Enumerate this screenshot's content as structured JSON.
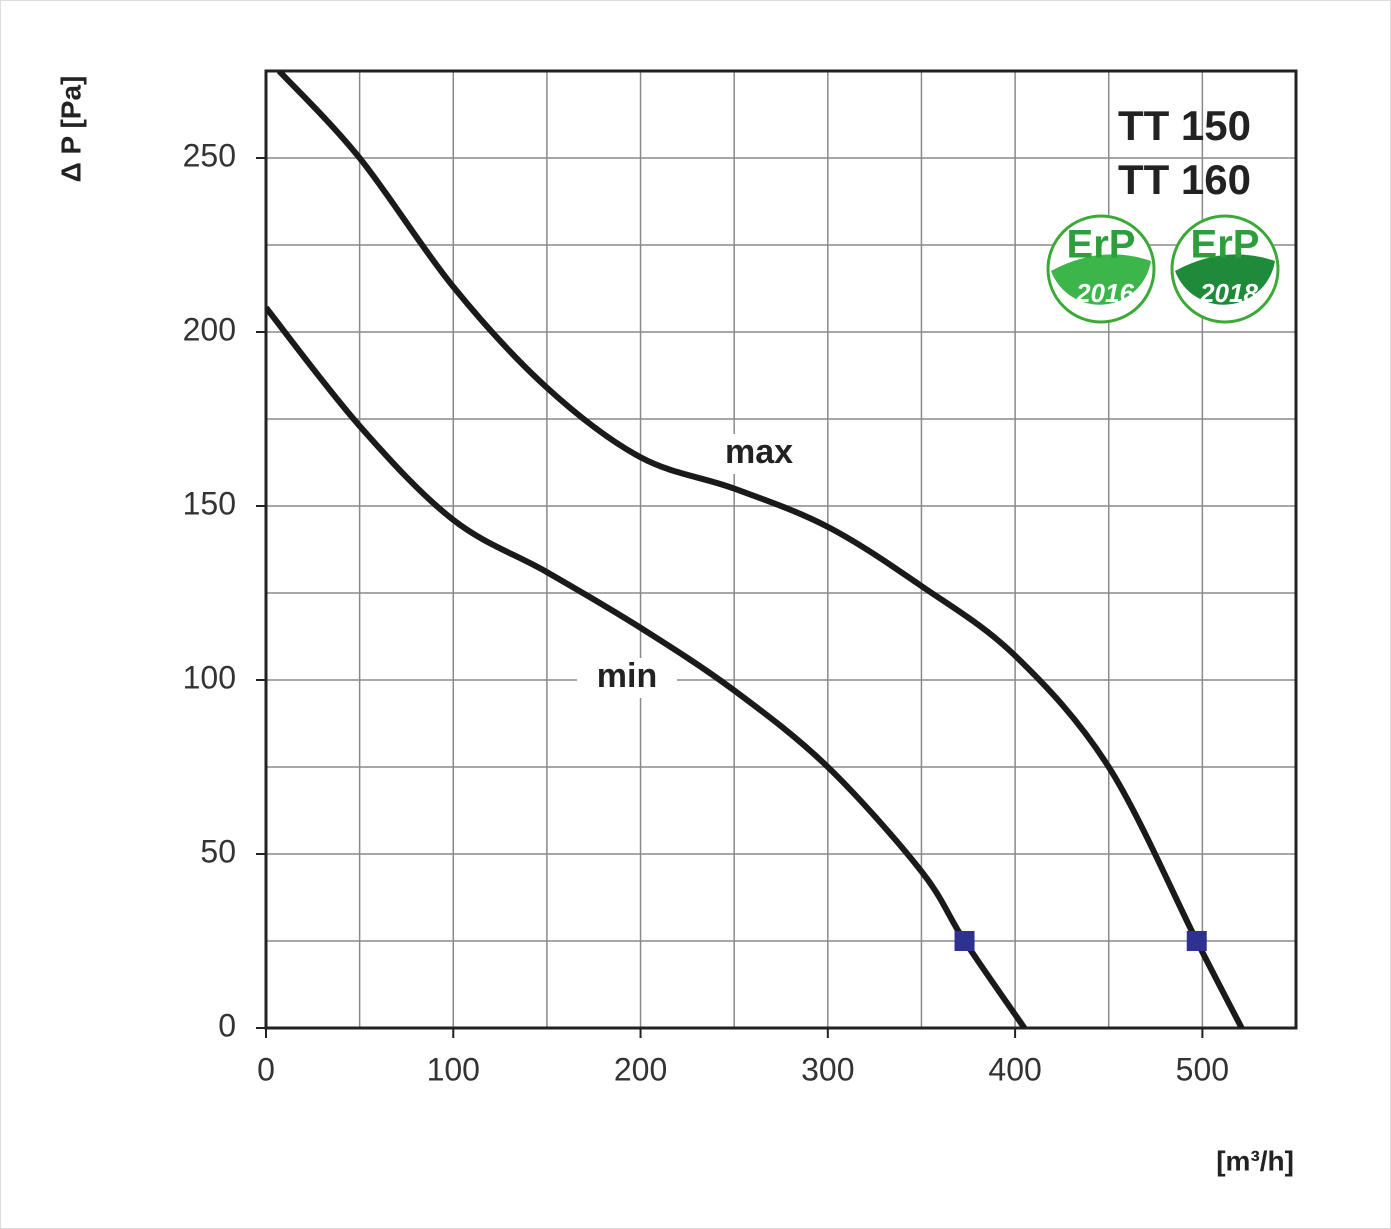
{
  "chart_data": {
    "type": "line",
    "title_lines": [
      "TT 150",
      "TT 160"
    ],
    "x_label": "[m³/h]",
    "y_label": "Δ P [Pa]",
    "xlim": [
      0,
      550
    ],
    "ylim": [
      0,
      275
    ],
    "xticks": [
      0,
      100,
      200,
      300,
      400,
      500
    ],
    "yticks": [
      0,
      50,
      100,
      150,
      200,
      250
    ],
    "grid": true,
    "series": [
      {
        "name": "max",
        "color": "#1a1a1a",
        "x": [
          7,
          50,
          100,
          150,
          200,
          250,
          300,
          350,
          400,
          450,
          497,
          521
        ],
        "values": [
          275,
          250,
          213,
          184,
          164,
          155,
          144,
          127,
          107,
          75,
          25,
          0
        ]
      },
      {
        "name": "min",
        "color": "#1a1a1a",
        "x": [
          0,
          50,
          100,
          150,
          200,
          250,
          300,
          350,
          373,
          405
        ],
        "values": [
          207,
          173,
          146,
          131,
          115,
          97,
          75,
          45,
          25,
          0
        ]
      }
    ],
    "operating_points": {
      "color": "#2e3192",
      "x": [
        373,
        497
      ],
      "values": [
        25,
        25
      ]
    },
    "badges": [
      {
        "label": "ErP",
        "year": "2016"
      },
      {
        "label": "ErP",
        "year": "2018"
      }
    ]
  }
}
